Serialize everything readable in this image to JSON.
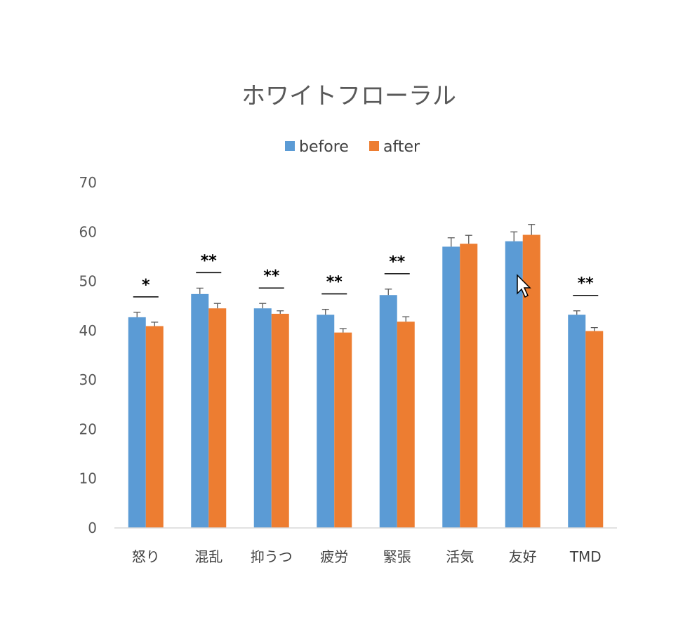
{
  "chart_data": {
    "type": "bar",
    "title": "ホワイトフローラル",
    "categories": [
      "怒り",
      "混乱",
      "抑うつ",
      "疲労",
      "緊張",
      "活気",
      "友好",
      "TMD"
    ],
    "series": [
      {
        "name": "before",
        "color": "#5B9BD5",
        "values": [
          42.7,
          47.4,
          44.5,
          43.2,
          47.2,
          57.0,
          58.1,
          43.2
        ],
        "errors": [
          1.0,
          1.2,
          1.0,
          1.1,
          1.2,
          1.8,
          1.9,
          0.8
        ]
      },
      {
        "name": "after",
        "color": "#ED7D31",
        "values": [
          40.9,
          44.5,
          43.4,
          39.6,
          41.8,
          57.6,
          59.4,
          39.9
        ],
        "errors": [
          0.8,
          1.0,
          0.6,
          0.8,
          1.0,
          1.7,
          2.1,
          0.7
        ]
      }
    ],
    "significance": [
      "*",
      "**",
      "**",
      "**",
      "**",
      "",
      "",
      "**"
    ],
    "yticks": [
      "0",
      "10",
      "20",
      "30",
      "40",
      "50",
      "60",
      "70"
    ],
    "ylim": [
      0,
      70
    ],
    "grid": false,
    "legend_position": "top"
  }
}
